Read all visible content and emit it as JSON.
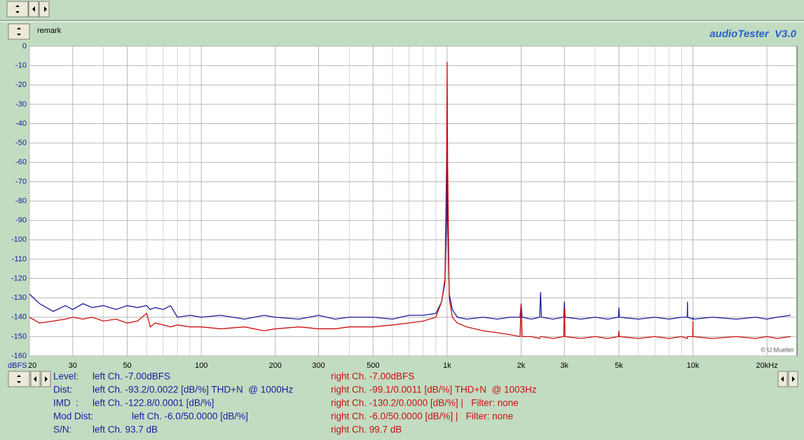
{
  "app_title": "audioTester  V3.0",
  "remark": "remark",
  "copyright": "© U.Mueller",
  "chart_data": {
    "type": "line",
    "xscale": "log",
    "grid": true,
    "y_unit": "dBFS",
    "xlim": [
      20,
      26500
    ],
    "ylim": [
      -160,
      0
    ],
    "xticks": [
      20,
      30,
      50,
      100,
      200,
      300,
      500,
      {
        "value": 1000,
        "label": "1k"
      },
      {
        "value": 2000,
        "label": "2k"
      },
      {
        "value": 3000,
        "label": "3k"
      },
      {
        "value": 5000,
        "label": "5k"
      },
      {
        "value": 10000,
        "label": "10k"
      },
      {
        "value": 20000,
        "label": "20kHz"
      }
    ],
    "x_minor_grid": [
      40,
      60,
      70,
      80,
      90,
      400,
      600,
      700,
      800,
      900,
      4000,
      6000,
      7000,
      8000,
      9000
    ],
    "yticks": [
      0,
      -10,
      -20,
      -30,
      -40,
      -50,
      -60,
      -70,
      -80,
      -90,
      -100,
      -110,
      -120,
      -130,
      -140,
      -150,
      -160
    ],
    "x": [
      20,
      22,
      25,
      28,
      30,
      33,
      36,
      40,
      45,
      50,
      55,
      60,
      62,
      65,
      70,
      75,
      80,
      90,
      100,
      120,
      150,
      180,
      200,
      250,
      300,
      350,
      400,
      500,
      600,
      700,
      800,
      900,
      950,
      980,
      995,
      1000,
      1005,
      1020,
      1050,
      1100,
      1200,
      1400,
      1600,
      1800,
      1980,
      2000,
      2020,
      2200,
      2380,
      2400,
      2420,
      2700,
      2980,
      3000,
      3020,
      3500,
      4000,
      4500,
      4980,
      5000,
      5020,
      6000,
      7000,
      8000,
      9000,
      9480,
      9500,
      9520,
      9980,
      10000,
      10020,
      12000,
      15000,
      18000,
      20000,
      22000,
      25000
    ],
    "series": [
      {
        "color": "#1c1c9c",
        "values": [
          -128,
          -133,
          -137,
          -134,
          -136,
          -133,
          -135,
          -134,
          -136,
          -134,
          -135,
          -134,
          -136,
          -135,
          -136,
          -134,
          -140,
          -139,
          -140,
          -139,
          -141,
          -139,
          -140,
          -141,
          -139,
          -141,
          -140,
          -140,
          -141,
          -139,
          -139,
          -138,
          -132,
          -122,
          -90,
          -55,
          -90,
          -128,
          -136,
          -140,
          -141,
          -140,
          -141,
          -140,
          -140,
          -133,
          -140,
          -141,
          -140,
          -127,
          -140,
          -141,
          -140,
          -132,
          -140,
          -141,
          -140,
          -141,
          -140,
          -135,
          -140,
          -141,
          -140,
          -141,
          -140,
          -140,
          -132,
          -140,
          -141,
          -140,
          -141,
          -140,
          -141,
          -140,
          -141,
          -140,
          -139
        ]
      },
      {
        "color": "#cc1010",
        "values": [
          -140,
          -143,
          -142,
          -141,
          -140,
          -141,
          -140,
          -142,
          -141,
          -143,
          -142,
          -138,
          -145,
          -143,
          -144,
          -145,
          -144,
          -145,
          -145,
          -146,
          -145,
          -147,
          -146,
          -145,
          -146,
          -146,
          -145,
          -145,
          -144,
          -143,
          -142,
          -140,
          -132,
          -120,
          -60,
          -8,
          -60,
          -130,
          -140,
          -143,
          -145,
          -147,
          -148,
          -149,
          -150,
          -133,
          -150,
          -150,
          -151,
          -150,
          -150,
          -151,
          -150,
          -135,
          -150,
          -151,
          -150,
          -151,
          -150,
          -147,
          -150,
          -151,
          -150,
          -151,
          -150,
          -151,
          -150,
          -150,
          -150,
          -142,
          -150,
          -151,
          -150,
          -151,
          -150,
          -151,
          -150
        ]
      }
    ]
  },
  "measurements": [
    {
      "label": "Level:",
      "left": "left Ch. -7.00dBFS",
      "right": "right Ch. -7.00dBFS"
    },
    {
      "label": "Dist:",
      "left": "left Ch. -93.2/0.0022 [dB/%] THD+N  @ 1000Hz",
      "right": "right Ch. -99.1/0.0011 [dB/%] THD+N  @ 1003Hz"
    },
    {
      "label": "IMD  :",
      "left": "left Ch. -122.8/0.0001 [dB/%]",
      "right": "right Ch. -130.2/0.0000 [dB/%] |   Filter: none"
    },
    {
      "label": "Mod Dist:",
      "left": "left Ch. -6.0/50.0000 [dB/%]",
      "right": "right Ch. -6.0/50.0000 [dB/%] |   Filter: none"
    },
    {
      "label": "S/N:",
      "left": "left Ch. 93.7 dB",
      "right": "right Ch. 99.7 dB"
    }
  ]
}
